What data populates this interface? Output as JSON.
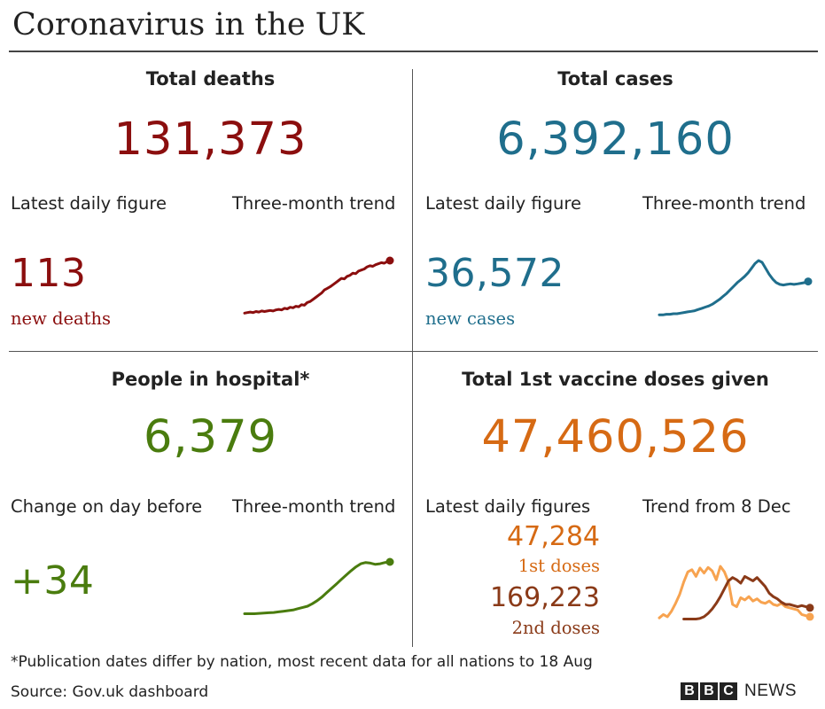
{
  "title": "Coronavirus in the UK",
  "colors": {
    "deaths": "#8b0e0e",
    "cases": "#1f6e8c",
    "hospital": "#4a7c0e",
    "first_doses": "#d66a14",
    "first_doses_line": "#f7a350",
    "second_doses": "#8a3a18",
    "rule": "#444444"
  },
  "panels": {
    "deaths": {
      "title": "Total deaths",
      "total": "131,373",
      "latest_label": "Latest daily figure",
      "trend_label": "Three-month trend",
      "daily_value": "113",
      "daily_caption": "new deaths"
    },
    "cases": {
      "title": "Total cases",
      "total": "6,392,160",
      "latest_label": "Latest daily figure",
      "trend_label": "Three-month trend",
      "daily_value": "36,572",
      "daily_caption": "new cases"
    },
    "hospital": {
      "title": "People in hospital*",
      "total": "6,379",
      "latest_label": "Change on day before",
      "trend_label": "Three-month trend",
      "daily_value": "+34"
    },
    "vaccine": {
      "title": "Total 1st vaccine doses given",
      "total": "47,460,526",
      "latest_label": "Latest daily figures",
      "trend_label": "Trend from 8 Dec",
      "first_value": "47,284",
      "first_caption": "1st doses",
      "second_value": "169,223",
      "second_caption": "2nd doses"
    }
  },
  "footnote": "*Publication dates differ by nation, most recent data for all nations to 18 Aug",
  "source": "Source: Gov.uk dashboard",
  "logo": {
    "letters": [
      "B",
      "B",
      "C"
    ],
    "word": "NEWS"
  },
  "chart_data": [
    {
      "type": "line",
      "title": "Three-month trend",
      "series": [
        {
          "values": [
            8,
            9,
            10,
            9,
            11,
            10,
            12,
            11,
            12,
            13,
            12,
            14,
            15,
            14,
            17,
            16,
            19,
            18,
            21,
            20,
            24,
            23,
            28,
            30,
            34,
            38,
            42,
            46,
            52,
            55,
            58,
            62,
            66,
            70,
            74,
            73,
            78,
            80,
            84,
            83,
            88,
            90,
            92,
            96,
            98,
            97,
            100,
            102,
            104,
            103,
            106,
            108
          ]
        }
      ]
    },
    {
      "type": "line",
      "title": "Three-month trend",
      "series": [
        {
          "values": [
            4,
            4,
            5,
            5,
            6,
            6,
            7,
            8,
            9,
            10,
            11,
            13,
            15,
            17,
            19,
            22,
            26,
            30,
            35,
            40,
            46,
            52,
            58,
            63,
            68,
            74,
            82,
            90,
            95,
            92,
            82,
            72,
            64,
            58,
            55,
            54,
            55,
            56,
            55,
            56,
            57,
            58,
            60
          ]
        }
      ]
    },
    {
      "type": "line",
      "title": "Three-month trend",
      "series": [
        {
          "values": [
            5,
            5,
            5,
            5.5,
            6,
            6.5,
            7,
            8,
            9,
            10,
            11,
            13,
            15,
            17,
            21,
            26,
            32,
            39,
            46,
            53,
            60,
            67,
            74,
            80,
            85,
            87,
            86,
            84,
            85,
            87,
            88
          ]
        }
      ]
    },
    {
      "type": "line",
      "title": "Trend from 8 Dec",
      "series": [
        {
          "name": "1st doses",
          "values": [
            6,
            12,
            8,
            18,
            32,
            48,
            70,
            88,
            92,
            80,
            95,
            86,
            96,
            90,
            74,
            98,
            88,
            70,
            30,
            26,
            42,
            38,
            44,
            36,
            40,
            34,
            32,
            36,
            30,
            28,
            32,
            26,
            24,
            22,
            20,
            12,
            10,
            8
          ]
        },
        {
          "name": "2nd doses",
          "values": [
            4,
            4,
            4,
            4,
            5,
            8,
            14,
            22,
            32,
            44,
            58,
            72,
            78,
            74,
            68,
            80,
            76,
            72,
            78,
            70,
            62,
            50,
            44,
            40,
            34,
            30,
            30,
            28,
            26,
            28,
            26,
            24
          ]
        }
      ]
    }
  ]
}
